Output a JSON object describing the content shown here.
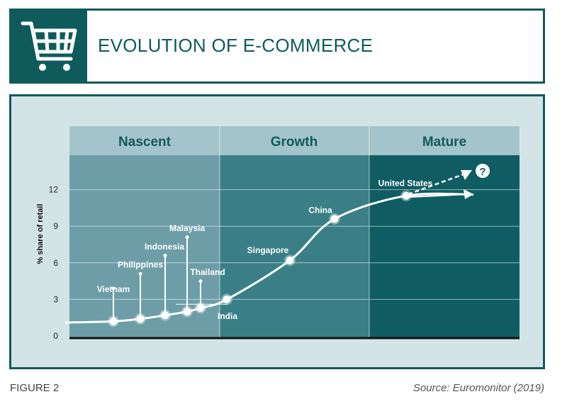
{
  "header": {
    "title": "EVOLUTION OF E-COMMERCE",
    "icon": "shopping-cart-icon"
  },
  "footer": {
    "figure_label": "FIGURE 2",
    "source": "Source: Euromonitor (2019)"
  },
  "colors": {
    "dark_teal": "#0f5b5b",
    "band_nascent": "#6d9ea7",
    "band_growth": "#3a7f86",
    "band_mature": "#0f5d62",
    "header_row": "#a3c4ca",
    "frame_bg": "#d3e4e7"
  },
  "chart_data": {
    "type": "line",
    "title": "",
    "xlabel": "",
    "ylabel": "% share of retail",
    "ylim": [
      0,
      15
    ],
    "yticks": [
      0,
      3,
      6,
      9,
      12
    ],
    "grid": true,
    "stages": [
      "Nascent",
      "Growth",
      "Mature"
    ],
    "countries": [
      {
        "name": "Vietnam",
        "stage": "Nascent",
        "value": 1.2
      },
      {
        "name": "Philippines",
        "stage": "Nascent",
        "value": 1.4
      },
      {
        "name": "Indonesia",
        "stage": "Nascent",
        "value": 1.7
      },
      {
        "name": "Malaysia",
        "stage": "Nascent",
        "value": 2.0
      },
      {
        "name": "Thailand",
        "stage": "Nascent",
        "value": 2.3
      },
      {
        "name": "India",
        "stage": "Nascent",
        "value": 3.0
      },
      {
        "name": "Singapore",
        "stage": "Growth",
        "value": 6.2
      },
      {
        "name": "China",
        "stage": "Growth",
        "value": 9.6
      },
      {
        "name": "United States",
        "stage": "Mature",
        "value": 11.5
      }
    ],
    "annotation": "?"
  }
}
